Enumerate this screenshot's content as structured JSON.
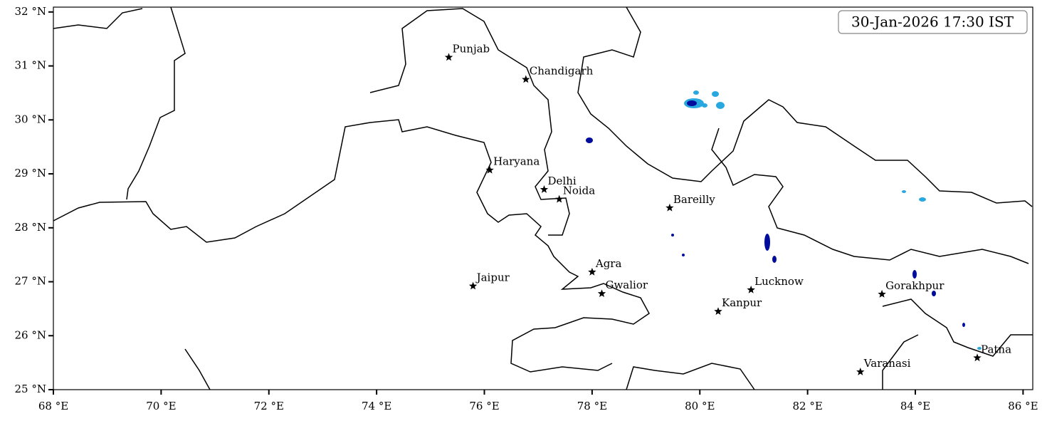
{
  "map": {
    "timestamp": "30-Jan-2026 17:30 IST",
    "xlim": [
      68,
      86.18
    ],
    "ylim": [
      25,
      32.09
    ],
    "xticks": [
      {
        "value": 68,
        "label": "68 °E"
      },
      {
        "value": 70,
        "label": "70 °E"
      },
      {
        "value": 72,
        "label": "72 °E"
      },
      {
        "value": 74,
        "label": "74 °E"
      },
      {
        "value": 76,
        "label": "76 °E"
      },
      {
        "value": 78,
        "label": "78 °E"
      },
      {
        "value": 80,
        "label": "80 °E"
      },
      {
        "value": 82,
        "label": "82 °E"
      },
      {
        "value": 84,
        "label": "84 °E"
      },
      {
        "value": 86,
        "label": "86 °E"
      }
    ],
    "yticks": [
      {
        "value": 25,
        "label": "25 °N"
      },
      {
        "value": 26,
        "label": "26 °N"
      },
      {
        "value": 27,
        "label": "27 °N"
      },
      {
        "value": 28,
        "label": "28 °N"
      },
      {
        "value": 29,
        "label": "29 °N"
      },
      {
        "value": 30,
        "label": "30 °N"
      },
      {
        "value": 31,
        "label": "31 °N"
      },
      {
        "value": 32,
        "label": "32 °N"
      }
    ],
    "cities": [
      {
        "name": "Punjab",
        "lon": 75.34,
        "lat": 31.16
      },
      {
        "name": "Chandigarh",
        "lon": 76.77,
        "lat": 30.75
      },
      {
        "name": "Haryana",
        "lon": 76.1,
        "lat": 29.07
      },
      {
        "name": "Delhi",
        "lon": 77.11,
        "lat": 28.71
      },
      {
        "name": "Noida",
        "lon": 77.39,
        "lat": 28.53
      },
      {
        "name": "Bareilly",
        "lon": 79.44,
        "lat": 28.37
      },
      {
        "name": "Agra",
        "lon": 78.0,
        "lat": 27.18
      },
      {
        "name": "Jaipur",
        "lon": 75.79,
        "lat": 26.92
      },
      {
        "name": "Gwalior",
        "lon": 78.18,
        "lat": 26.78
      },
      {
        "name": "Lucknow",
        "lon": 80.95,
        "lat": 26.85
      },
      {
        "name": "Kanpur",
        "lon": 80.34,
        "lat": 26.45
      },
      {
        "name": "Gorakhpur",
        "lon": 83.38,
        "lat": 26.77
      },
      {
        "name": "Varanasi",
        "lon": 82.98,
        "lat": 25.33
      },
      {
        "name": "Patna",
        "lon": 85.15,
        "lat": 25.59
      }
    ]
  }
}
